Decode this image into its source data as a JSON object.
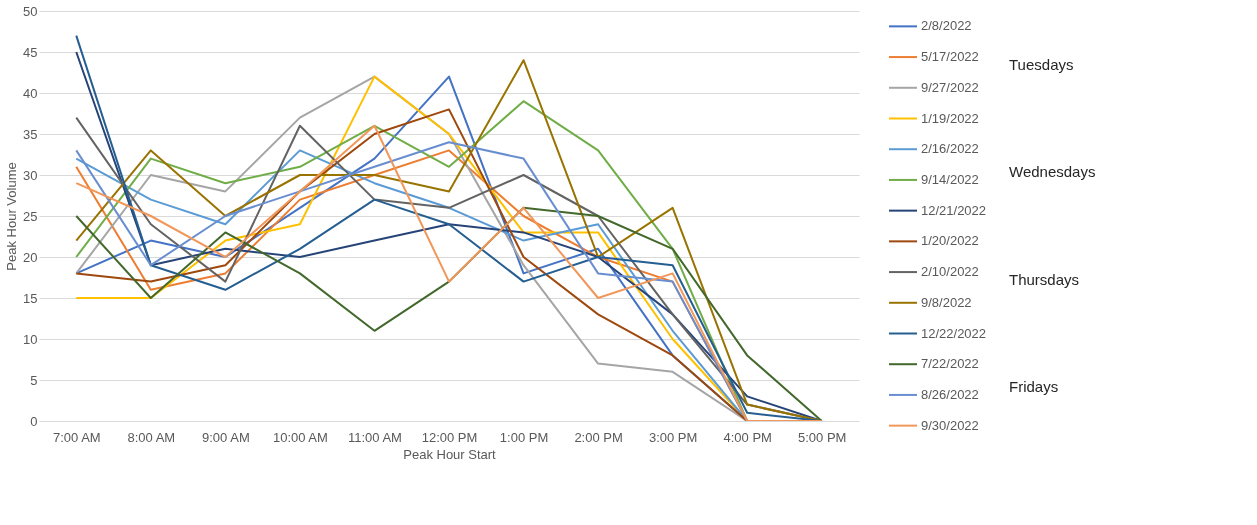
{
  "chart_data": {
    "type": "line",
    "xlabel": "Peak Hour Start",
    "ylabel": "Peak Hour Volume",
    "categories": [
      "7:00 AM",
      "8:00 AM",
      "9:00 AM",
      "10:00 AM",
      "11:00 AM",
      "12:00 PM",
      "1:00 PM",
      "2:00 PM",
      "3:00 PM",
      "4:00 PM",
      "5:00 PM"
    ],
    "ylim": [
      0,
      50
    ],
    "yticks": [
      0,
      5,
      10,
      15,
      20,
      25,
      30,
      35,
      40,
      45,
      50
    ],
    "grid": "y",
    "legend": "right",
    "marker": "none",
    "line_style": "solid",
    "annotations": [
      "Tuesdays",
      "Wednesdays",
      "Thursdays",
      "Fridays"
    ],
    "series": [
      {
        "name": "2/8/2022",
        "color": "#4472c4",
        "values": [
          18,
          22,
          20,
          26,
          32,
          42,
          18,
          21,
          8,
          0,
          0
        ]
      },
      {
        "name": "5/17/2022",
        "color": "#ed7d31",
        "values": [
          31,
          16,
          18,
          27,
          30,
          33,
          25,
          20,
          17,
          0,
          0
        ]
      },
      {
        "name": "9/27/2022",
        "color": "#a5a5a5",
        "values": [
          18,
          30,
          28,
          37,
          42,
          35,
          19,
          7,
          6,
          0,
          0
        ]
      },
      {
        "name": "1/19/2022",
        "color": "#ffc000",
        "values": [
          15,
          15,
          22,
          24,
          42,
          35,
          23,
          23,
          10,
          0,
          0
        ]
      },
      {
        "name": "2/16/2022",
        "color": "#5b9bd5",
        "values": [
          32,
          27,
          24,
          33,
          29,
          26,
          22,
          24,
          11,
          0,
          0
        ]
      },
      {
        "name": "9/14/2022",
        "color": "#70ad47",
        "values": [
          20,
          32,
          29,
          31,
          36,
          31,
          39,
          33,
          21,
          0,
          0
        ]
      },
      {
        "name": "12/21/2022",
        "color": "#264478",
        "values": [
          45,
          19,
          21,
          20,
          22,
          24,
          23,
          20,
          13,
          3,
          0
        ]
      },
      {
        "name": "1/20/2022",
        "color": "#9e480e",
        "values": [
          18,
          17,
          19,
          28,
          35,
          38,
          20,
          13,
          8,
          0,
          0
        ]
      },
      {
        "name": "2/10/2022",
        "color": "#636363",
        "values": [
          37,
          24,
          17,
          36,
          27,
          26,
          30,
          25,
          13,
          2,
          0
        ]
      },
      {
        "name": "9/8/2022",
        "color": "#997300",
        "values": [
          22,
          33,
          25,
          30,
          30,
          28,
          44,
          20,
          26,
          2,
          0
        ]
      },
      {
        "name": "12/22/2022",
        "color": "#255e91",
        "values": [
          47,
          19,
          16,
          21,
          27,
          24,
          17,
          20,
          19,
          1,
          0
        ]
      },
      {
        "name": "7/22/2022",
        "color": "#43682b",
        "values": [
          25,
          15,
          23,
          18,
          11,
          17,
          26,
          25,
          21,
          8,
          0
        ]
      },
      {
        "name": "8/26/2022",
        "color": "#698ed0",
        "values": [
          33,
          19,
          25,
          28,
          31,
          34,
          32,
          18,
          17,
          0,
          0
        ]
      },
      {
        "name": "9/30/2022",
        "color": "#f1975a",
        "values": [
          29,
          25,
          20,
          28,
          36,
          17,
          26,
          15,
          18,
          0,
          0
        ]
      }
    ]
  }
}
